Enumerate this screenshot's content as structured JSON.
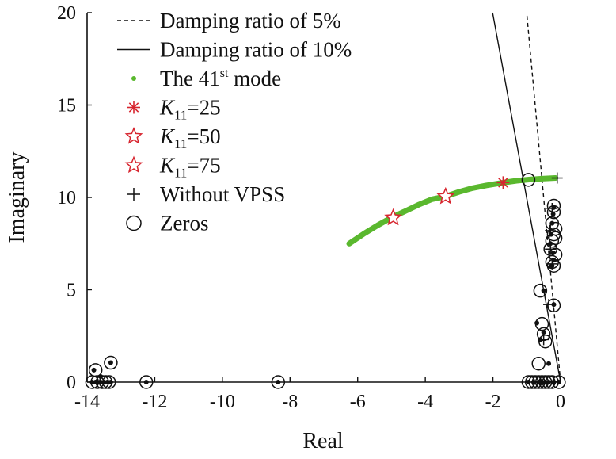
{
  "chart_data": {
    "type": "scatter",
    "xlabel": "Real",
    "ylabel": "Imaginary",
    "xlim": [
      -14,
      0
    ],
    "ylim": [
      0,
      20
    ],
    "xticks": [
      "-14",
      "-12",
      "-10",
      "-8",
      "-6",
      "-4",
      "-2",
      "0"
    ],
    "yticks": [
      "0",
      "5",
      "10",
      "15",
      "20"
    ],
    "grid": false,
    "legend_position": "top-right",
    "colors": {
      "mode": "#5ab82e",
      "marker": "#d7252f",
      "ink": "#111111"
    },
    "legend": [
      {
        "key": "d5",
        "label": "Damping ratio of 5%"
      },
      {
        "key": "d10",
        "label": "Damping ratio of 10%"
      },
      {
        "key": "mode",
        "label": "The 41st mode",
        "label_main": "The 41",
        "label_sup": "st",
        "label_tail": " mode"
      },
      {
        "key": "k25",
        "label": "K11=25",
        "label_main": "K",
        "label_sub": "11",
        "label_tail": "=25"
      },
      {
        "key": "k50",
        "label": "K11=50",
        "label_main": "K",
        "label_sub": "11",
        "label_tail": "=50"
      },
      {
        "key": "k75",
        "label": "K11=75",
        "label_main": "K",
        "label_sub": "11",
        "label_tail": "=75"
      },
      {
        "key": "nov",
        "label": "Without VPSS"
      },
      {
        "key": "zeros",
        "label": "Zeros"
      }
    ],
    "damping_lines": [
      {
        "name": "Damping ratio of 5%",
        "zeta": 0.05,
        "style": "dashed"
      },
      {
        "name": "Damping ratio of 10%",
        "zeta": 0.1,
        "style": "solid"
      }
    ],
    "mode_trajectory": {
      "name": "The 41st mode",
      "x": [
        -6.25,
        -5.8,
        -5.4,
        -5.0,
        -4.6,
        -4.2,
        -3.8,
        -3.4,
        -3.0,
        -2.6,
        -2.2,
        -1.7,
        -1.3,
        -0.9,
        -0.5,
        -0.15
      ],
      "y": [
        7.5,
        8.05,
        8.5,
        8.9,
        9.25,
        9.6,
        9.9,
        10.05,
        10.3,
        10.5,
        10.65,
        10.8,
        10.9,
        10.97,
        11.02,
        11.05
      ]
    },
    "gain_points": [
      {
        "name": "K11=25",
        "marker": "asterisk",
        "x": -1.7,
        "y": 10.8
      },
      {
        "name": "K11=50",
        "marker": "star",
        "x": -3.4,
        "y": 10.05
      },
      {
        "name": "K11=75",
        "marker": "star",
        "x": -4.95,
        "y": 8.9
      }
    ],
    "without_vpss": {
      "name": "Without VPSS",
      "x": [
        -0.1,
        -0.25,
        -0.3,
        -0.3,
        -0.25,
        -0.35,
        -0.5,
        -0.6,
        -0.2
      ],
      "y": [
        11.05,
        9.4,
        8.2,
        7.2,
        6.4,
        4.2,
        2.3,
        0.05,
        0.05
      ]
    },
    "poles": {
      "x": [
        -13.85,
        -13.75,
        -13.7,
        -13.6,
        -13.5,
        -13.4,
        -13.3,
        -13.3,
        -13.8,
        -13.6,
        -12.25,
        -8.35,
        -0.95,
        -0.8,
        -0.65,
        -0.55,
        -0.45,
        -0.35,
        -0.2,
        -0.05,
        -0.2,
        -0.22,
        -0.25,
        -0.28,
        -0.3,
        -0.22,
        -0.2,
        -0.25,
        -0.5,
        -0.2,
        -0.7,
        -0.5,
        -0.6,
        -0.35,
        -0.2
      ],
      "y": [
        0.0,
        0.0,
        0.0,
        0.0,
        0.0,
        0.0,
        0.0,
        1.05,
        0.65,
        0.3,
        0.0,
        0.0,
        0.0,
        0.0,
        0.0,
        0.0,
        0.0,
        0.0,
        0.0,
        0.0,
        9.45,
        9.1,
        8.6,
        8.0,
        7.5,
        7.0,
        6.6,
        6.3,
        4.95,
        4.2,
        3.2,
        2.7,
        2.3,
        1.0,
        0.0
      ]
    },
    "zeros": {
      "name": "Zeros",
      "x": [
        -13.85,
        -13.7,
        -13.55,
        -13.45,
        -13.35,
        -13.3,
        -13.75,
        -12.25,
        -8.35,
        -0.95,
        -0.85,
        -0.75,
        -0.65,
        -0.55,
        -0.45,
        -0.35,
        -0.25,
        -0.05,
        -0.2,
        -0.2,
        -0.25,
        -0.15,
        -0.2,
        -0.25,
        -0.3,
        -0.15,
        -0.25,
        -0.2,
        -0.15,
        -0.6,
        -0.2,
        -0.55,
        -0.5,
        -0.45,
        -0.65,
        -0.95
      ],
      "y": [
        0.0,
        0.0,
        0.0,
        0.0,
        0.0,
        1.05,
        0.65,
        0.0,
        0.0,
        0.0,
        0.0,
        0.0,
        0.0,
        0.0,
        0.0,
        0.0,
        0.0,
        0.0,
        9.55,
        9.2,
        8.6,
        8.3,
        8.0,
        7.65,
        7.2,
        6.9,
        6.5,
        6.3,
        7.8,
        4.95,
        4.15,
        3.15,
        2.6,
        2.2,
        1.0,
        10.95
      ]
    }
  }
}
